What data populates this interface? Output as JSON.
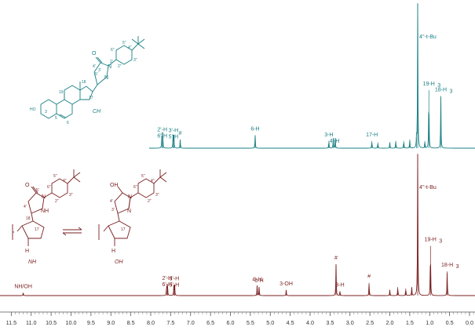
{
  "chart_data": [
    {
      "type": "line",
      "title": "",
      "xlabel": "",
      "ylabel": "",
      "xlim": [
        12.0,
        0.0
      ],
      "reversed_x": true,
      "grid": false,
      "color": "#1a7f83",
      "compound_label": "CH",
      "peaks": [
        {
          "x": 7.72,
          "h": 0.11
        },
        {
          "x": 7.7,
          "h": 0.11
        },
        {
          "x": 7.44,
          "h": 0.09
        },
        {
          "x": 7.42,
          "h": 0.09
        },
        {
          "x": 7.26,
          "h": 0.06
        },
        {
          "x": 5.38,
          "h": 0.09
        },
        {
          "x": 3.53,
          "h": 0.05
        },
        {
          "x": 3.42,
          "h": 0.07
        },
        {
          "x": 3.37,
          "h": 0.07
        },
        {
          "x": 2.45,
          "h": 0.05
        },
        {
          "x": 2.3,
          "h": 0.04
        },
        {
          "x": 2.0,
          "h": 0.04
        },
        {
          "x": 1.85,
          "h": 0.05
        },
        {
          "x": 1.65,
          "h": 0.05
        },
        {
          "x": 1.5,
          "h": 0.06
        },
        {
          "x": 1.33,
          "h": 0.07
        },
        {
          "x": 1.3,
          "h": 1.0
        },
        {
          "x": 1.12,
          "h": 0.05
        },
        {
          "x": 1.02,
          "h": 0.4
        },
        {
          "x": 0.72,
          "h": 0.36
        }
      ],
      "annotations": [
        {
          "text1": "2'-H",
          "text2": "6'-H",
          "x": 7.71
        },
        {
          "text1": "3'-H",
          "text2": "5'-H",
          "x": 7.43
        },
        {
          "text1": "#",
          "text2": "",
          "x": 7.26
        },
        {
          "text1": "6-H",
          "text2": "",
          "x": 5.38
        },
        {
          "text1": "3-H",
          "text2": "",
          "x": 3.53
        },
        {
          "text1": "4'-H",
          "text2": "",
          "x": 3.39
        },
        {
          "text1": "17-H",
          "text2": "",
          "x": 2.45
        },
        {
          "text1": "4''-t-Bu",
          "text2": "",
          "x": 1.3
        },
        {
          "text1": "19-H",
          "text2": "",
          "x": 1.02
        },
        {
          "text1": "18-H",
          "text2": "",
          "x": 0.72
        }
      ]
    },
    {
      "type": "line",
      "title": "",
      "xlabel": "",
      "ylabel": "",
      "xlim": [
        12.0,
        0.0
      ],
      "reversed_x": true,
      "grid": false,
      "color": "#7a1f1f",
      "compound_labels": [
        "NH",
        "OH"
      ],
      "peaks": [
        {
          "x": 11.2,
          "h": 0.02
        },
        {
          "x": 7.6,
          "h": 0.08
        },
        {
          "x": 7.58,
          "h": 0.08
        },
        {
          "x": 7.42,
          "h": 0.07
        },
        {
          "x": 7.4,
          "h": 0.07
        },
        {
          "x": 5.33,
          "h": 0.07
        },
        {
          "x": 5.28,
          "h": 0.06
        },
        {
          "x": 4.6,
          "h": 0.04
        },
        {
          "x": 3.35,
          "h": 0.22
        },
        {
          "x": 3.25,
          "h": 0.03
        },
        {
          "x": 2.52,
          "h": 0.09
        },
        {
          "x": 2.0,
          "h": 0.04
        },
        {
          "x": 1.8,
          "h": 0.06
        },
        {
          "x": 1.6,
          "h": 0.05
        },
        {
          "x": 1.45,
          "h": 0.06
        },
        {
          "x": 1.3,
          "h": 1.0
        },
        {
          "x": 0.98,
          "h": 0.35
        },
        {
          "x": 0.56,
          "h": 0.17
        }
      ],
      "annotations": [
        {
          "text1": "NH/OH",
          "text2": "",
          "x": 11.2
        },
        {
          "text1": "2'-H",
          "text2": "6'-H",
          "x": 7.59
        },
        {
          "text1": "3'-H",
          "text2": "5'-H",
          "x": 7.41
        },
        {
          "text1": "4'-H",
          "text2": "",
          "x": 5.33
        },
        {
          "text1": "6-H",
          "text2": "",
          "x": 5.28
        },
        {
          "text1": "3-OH",
          "text2": "",
          "x": 4.6
        },
        {
          "text1": "#",
          "text2": "",
          "x": 3.35
        },
        {
          "text1": "3-H",
          "text2": "",
          "x": 3.25
        },
        {
          "text1": "#",
          "text2": "",
          "x": 2.52
        },
        {
          "text1": "4''-t-Bu",
          "text2": "",
          "x": 1.3
        },
        {
          "text1": "19-H",
          "text2": "",
          "x": 0.98
        },
        {
          "text1": "18-H",
          "text2": "",
          "x": 0.56
        }
      ]
    }
  ],
  "x_axis": {
    "ticks": [
      "11.5",
      "11.0",
      "10.5",
      "10.0",
      "9.5",
      "9.0",
      "8.5",
      "8.0",
      "7.5",
      "7.0",
      "6.5",
      "6.0",
      "5.5",
      "5.0",
      "4.5",
      "4.0",
      "3.5",
      "3.0",
      "2.5",
      "2.0",
      "1.5",
      "1.0",
      "0.5",
      "0.0"
    ]
  },
  "subscripts": {
    "h3": "3"
  },
  "structures": {
    "top": {
      "atoms": [
        "HO",
        "3",
        "5",
        "6",
        "19",
        "18",
        "17",
        "O",
        "5'",
        "2'",
        "3'",
        "4'",
        "N",
        "N",
        "5\"",
        "6\"",
        "4\"",
        "3\"",
        "2\""
      ],
      "label": "CH"
    },
    "bottom_left": {
      "atoms": [
        "O",
        "5'",
        "4'",
        "N",
        "NH",
        "4\"",
        "5\"",
        "6\"",
        "3\"",
        "2\"",
        "17",
        "18",
        "H"
      ],
      "label": "NH"
    },
    "bottom_right": {
      "atoms": [
        "OH",
        "4'",
        "3'",
        "N",
        "N",
        "5\"",
        "4\"",
        "6\"",
        "3\"",
        "2\"",
        "17",
        "H"
      ],
      "label": "OH"
    }
  }
}
